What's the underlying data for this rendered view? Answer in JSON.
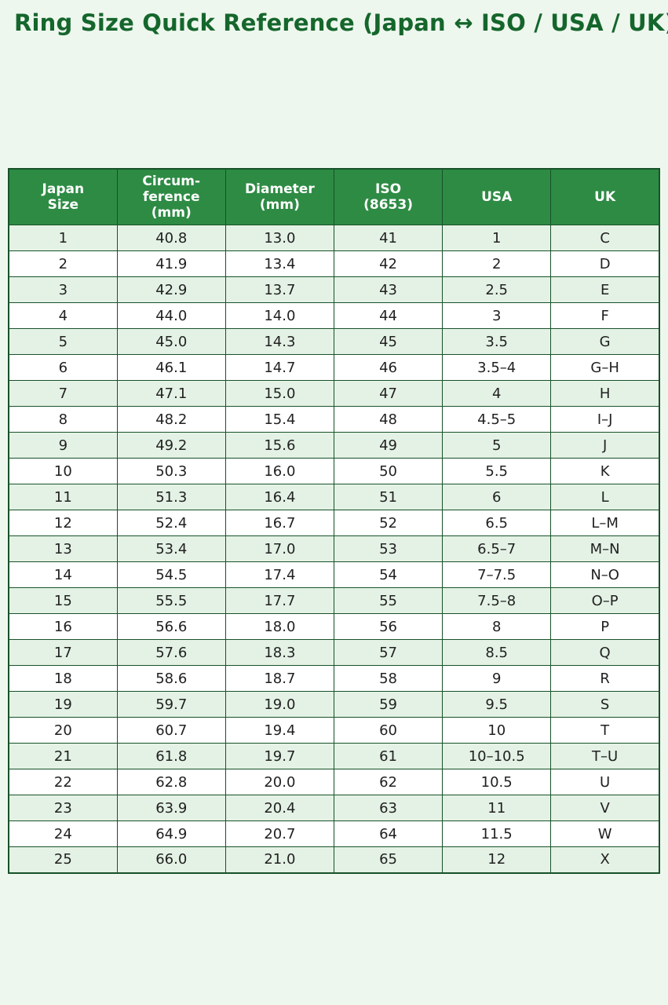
{
  "page": {
    "title": "Ring Size Quick Reference (Japan ↔ ISO / USA / UK)"
  },
  "colors": {
    "page_background": "#eef7ee",
    "title_text": "#15662c",
    "header_background": "#2e8b44",
    "header_text": "#ffffff",
    "border": "#175229",
    "row_shaded": "#e4f2e5",
    "row_plain": "#ffffff",
    "cell_text": "#212121"
  },
  "table": {
    "columns": [
      "Japan\nSize",
      "Circum-\nference\n(mm)",
      "Diameter\n(mm)",
      "ISO\n(8653)",
      "USA",
      "UK"
    ],
    "rows": [
      [
        "1",
        "40.8",
        "13.0",
        "41",
        "1",
        "C"
      ],
      [
        "2",
        "41.9",
        "13.4",
        "42",
        "2",
        "D"
      ],
      [
        "3",
        "42.9",
        "13.7",
        "43",
        "2.5",
        "E"
      ],
      [
        "4",
        "44.0",
        "14.0",
        "44",
        "3",
        "F"
      ],
      [
        "5",
        "45.0",
        "14.3",
        "45",
        "3.5",
        "G"
      ],
      [
        "6",
        "46.1",
        "14.7",
        "46",
        "3.5–4",
        "G–H"
      ],
      [
        "7",
        "47.1",
        "15.0",
        "47",
        "4",
        "H"
      ],
      [
        "8",
        "48.2",
        "15.4",
        "48",
        "4.5–5",
        "I–J"
      ],
      [
        "9",
        "49.2",
        "15.6",
        "49",
        "5",
        "J"
      ],
      [
        "10",
        "50.3",
        "16.0",
        "50",
        "5.5",
        "K"
      ],
      [
        "11",
        "51.3",
        "16.4",
        "51",
        "6",
        "L"
      ],
      [
        "12",
        "52.4",
        "16.7",
        "52",
        "6.5",
        "L–M"
      ],
      [
        "13",
        "53.4",
        "17.0",
        "53",
        "6.5–7",
        "M–N"
      ],
      [
        "14",
        "54.5",
        "17.4",
        "54",
        "7–7.5",
        "N–O"
      ],
      [
        "15",
        "55.5",
        "17.7",
        "55",
        "7.5–8",
        "O–P"
      ],
      [
        "16",
        "56.6",
        "18.0",
        "56",
        "8",
        "P"
      ],
      [
        "17",
        "57.6",
        "18.3",
        "57",
        "8.5",
        "Q"
      ],
      [
        "18",
        "58.6",
        "18.7",
        "58",
        "9",
        "R"
      ],
      [
        "19",
        "59.7",
        "19.0",
        "59",
        "9.5",
        "S"
      ],
      [
        "20",
        "60.7",
        "19.4",
        "60",
        "10",
        "T"
      ],
      [
        "21",
        "61.8",
        "19.7",
        "61",
        "10–10.5",
        "T–U"
      ],
      [
        "22",
        "62.8",
        "20.0",
        "62",
        "10.5",
        "U"
      ],
      [
        "23",
        "63.9",
        "20.4",
        "63",
        "11",
        "V"
      ],
      [
        "24",
        "64.9",
        "20.7",
        "64",
        "11.5",
        "W"
      ],
      [
        "25",
        "66.0",
        "21.0",
        "65",
        "12",
        "X"
      ]
    ]
  }
}
